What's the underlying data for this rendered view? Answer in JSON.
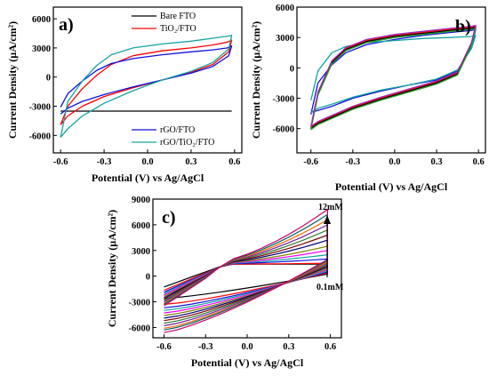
{
  "chart_data": [
    {
      "type": "line",
      "panel_label": "a)",
      "xlabel": "Potential (V) vs Ag/AgCl",
      "ylabel": "Current Density (µA/cm²)",
      "xlim": [
        -0.65,
        0.65
      ],
      "ylim": [
        -7800,
        7200
      ],
      "xticks": [
        "-0.6",
        "-0.3",
        "0.0",
        "0.3",
        "0.6"
      ],
      "yticks": [
        "6000",
        "3000",
        "0",
        "-3000",
        "-6000"
      ],
      "xtick_values": [
        -0.6,
        -0.3,
        0.0,
        0.3,
        0.6
      ],
      "ytick_values": [
        6000,
        3000,
        0,
        -3000,
        -6000
      ],
      "legend_top": [
        "Bare FTO",
        "TiO₂/FTO"
      ],
      "legend_bottom": [
        "rGO/FTO",
        "rGO/TiO₂/FTO"
      ],
      "series": [
        {
          "name": "Bare FTO",
          "color": "#000000",
          "x": [
            -0.6,
            0.58
          ],
          "y": [
            -3500,
            -3500
          ]
        },
        {
          "name": "TiO₂/FTO",
          "color": "#ff0000",
          "x": [
            -0.6,
            -0.55,
            -0.45,
            -0.35,
            -0.25,
            -0.1,
            0.1,
            0.3,
            0.45,
            0.55,
            0.58,
            0.56,
            0.45,
            0.3,
            0.1,
            -0.1,
            -0.3,
            -0.45,
            -0.55,
            -0.6
          ],
          "y": [
            -4900,
            -3000,
            -1200,
            200,
            1300,
            2200,
            2700,
            3000,
            3300,
            3600,
            3800,
            2600,
            1300,
            500,
            -300,
            -1100,
            -2000,
            -3000,
            -4000,
            -4900
          ]
        },
        {
          "name": "rGO/FTO",
          "color": "#1010e0",
          "x": [
            -0.6,
            -0.55,
            -0.45,
            -0.35,
            -0.25,
            -0.1,
            0.1,
            0.3,
            0.45,
            0.55,
            0.58,
            0.56,
            0.45,
            0.3,
            0.1,
            -0.1,
            -0.3,
            -0.45,
            -0.55,
            -0.6
          ],
          "y": [
            -3100,
            -1700,
            -400,
            700,
            1400,
            1900,
            2300,
            2600,
            2800,
            3000,
            3200,
            2200,
            1100,
            400,
            -300,
            -1000,
            -1800,
            -2500,
            -3200,
            -3800
          ]
        },
        {
          "name": "rGO/TiO₂/FTO",
          "color": "#14a5a0",
          "x": [
            -0.6,
            -0.55,
            -0.45,
            -0.35,
            -0.25,
            -0.1,
            0.1,
            0.3,
            0.45,
            0.55,
            0.58,
            0.56,
            0.45,
            0.3,
            0.1,
            -0.1,
            -0.3,
            -0.45,
            -0.55,
            -0.6
          ],
          "y": [
            -6200,
            -2500,
            -400,
            1200,
            2300,
            3000,
            3400,
            3700,
            4000,
            4200,
            4300,
            2900,
            1500,
            600,
            -300,
            -1400,
            -2700,
            -4000,
            -5300,
            -6200
          ]
        }
      ]
    },
    {
      "type": "line",
      "panel_label": "b)",
      "xlabel": "Potential (V) vs Ag/AgCl",
      "ylabel": "Current Density (µA/cm²)",
      "xlim": [
        -0.7,
        0.65
      ],
      "ylim": [
        -8400,
        6000
      ],
      "xticks": [
        "-0.6",
        "-0.3",
        "0.0",
        "0.3",
        "0.6"
      ],
      "yticks": [
        "6000",
        "3000",
        "0",
        "-3000",
        "-6000"
      ],
      "xtick_values": [
        -0.6,
        -0.3,
        0.0,
        0.3,
        0.6
      ],
      "ytick_values": [
        6000,
        3000,
        0,
        -3000,
        -6000
      ],
      "series": [
        {
          "color": "#1010e0",
          "x": [
            -0.6,
            -0.55,
            -0.45,
            -0.35,
            -0.2,
            0.0,
            0.2,
            0.4,
            0.55,
            0.58,
            0.55,
            0.45,
            0.3,
            0.1,
            -0.1,
            -0.3,
            -0.45,
            -0.55,
            -0.6
          ],
          "y": [
            -4600,
            -1500,
            300,
            1500,
            2300,
            2800,
            3200,
            3500,
            3700,
            3800,
            2000,
            -300,
            -1200,
            -1700,
            -2300,
            -3000,
            -3800,
            -4200,
            -4400
          ]
        },
        {
          "color": "#14a5a0",
          "x": [
            -0.6,
            -0.55,
            -0.45,
            -0.35,
            -0.2,
            0.0,
            0.2,
            0.4,
            0.55,
            0.58,
            0.55,
            0.45,
            0.3,
            0.1,
            -0.1,
            -0.3,
            -0.45,
            -0.55,
            -0.6
          ],
          "y": [
            -3200,
            -300,
            1500,
            2100,
            2500,
            2700,
            2900,
            3000,
            3100,
            3200,
            1900,
            -200,
            -1100,
            -1700,
            -2200,
            -2900,
            -3600,
            -4000,
            -4400
          ]
        },
        {
          "color": "#ff0000",
          "x": [
            -0.6,
            -0.55,
            -0.45,
            -0.35,
            -0.2,
            0.0,
            0.2,
            0.4,
            0.55,
            0.58,
            0.55,
            0.45,
            0.3,
            0.1,
            -0.1,
            -0.3,
            -0.45,
            -0.55,
            -0.6
          ],
          "y": [
            -5900,
            -2500,
            600,
            1900,
            2700,
            3200,
            3500,
            3800,
            4000,
            4100,
            2400,
            -500,
            -1400,
            -2200,
            -3000,
            -3900,
            -4800,
            -5400,
            -5900
          ]
        },
        {
          "color": "#000000",
          "x": [
            -0.6,
            -0.55,
            -0.45,
            -0.35,
            -0.2,
            0.0,
            0.2,
            0.4,
            0.55,
            0.58,
            0.55,
            0.45,
            0.3,
            0.1,
            -0.1,
            -0.3,
            -0.45,
            -0.55,
            -0.6
          ],
          "y": [
            -6000,
            -2600,
            500,
            1800,
            2600,
            3100,
            3400,
            3700,
            3900,
            4000,
            2300,
            -600,
            -1500,
            -2300,
            -3100,
            -4000,
            -4900,
            -5500,
            -6000
          ]
        },
        {
          "color": "#2ca02c",
          "x": [
            -0.6,
            -0.55,
            -0.45,
            -0.35,
            -0.2,
            0.0,
            0.2,
            0.4,
            0.55,
            0.58,
            0.55,
            0.45,
            0.3,
            0.1,
            -0.1,
            -0.3,
            -0.45,
            -0.55,
            -0.6
          ],
          "y": [
            -6100,
            -2700,
            400,
            1700,
            2500,
            3000,
            3300,
            3600,
            3800,
            3900,
            2200,
            -700,
            -1600,
            -2400,
            -3200,
            -4100,
            -5000,
            -5600,
            -6100
          ]
        },
        {
          "color": "#9c27b0",
          "x": [
            -0.6,
            -0.55,
            -0.45,
            -0.35,
            -0.2,
            0.0,
            0.2,
            0.4,
            0.55,
            0.58,
            0.55,
            0.45,
            0.3,
            0.1,
            -0.1,
            -0.3,
            -0.45,
            -0.55,
            -0.6
          ],
          "y": [
            -5800,
            -2400,
            700,
            2000,
            2800,
            3300,
            3600,
            3900,
            4100,
            4200,
            2500,
            -400,
            -1300,
            -2100,
            -2900,
            -3800,
            -4700,
            -5300,
            -5800
          ]
        }
      ]
    },
    {
      "type": "line",
      "panel_label": "c)",
      "xlabel": "Potential (V) vs Ag/AgCl",
      "ylabel": "Current Density (µA/cm²)",
      "xlim": [
        -0.68,
        0.68
      ],
      "ylim": [
        -7200,
        9000
      ],
      "xticks": [
        "-0.6",
        "-0.3",
        "0.0",
        "0.3",
        "0.6"
      ],
      "yticks": [
        "9000",
        "6000",
        "3000",
        "0",
        "-3000",
        "-6000"
      ],
      "xtick_values": [
        -0.6,
        -0.3,
        0.0,
        0.3,
        0.6
      ],
      "ytick_values": [
        9000,
        6000,
        3000,
        0,
        -3000,
        -6000
      ],
      "annotation_top": "12mM",
      "annotation_bottom": "0.1mM",
      "family_colors": [
        "#000000",
        "#ff0000",
        "#1010e0",
        "#14a5a0",
        "#ff00ff",
        "#808000",
        "#000080",
        "#800000",
        "#2e7d32",
        "#7b1fa2",
        "#ff6600",
        "#006666",
        "#cc0066"
      ],
      "family_anodic_max": [
        1000,
        1500,
        2000,
        2500,
        3000,
        3500,
        4200,
        4800,
        5400,
        6000,
        6600,
        7200,
        7800
      ],
      "family_cathodic_min": [
        -2300,
        -3000,
        -3400,
        -3700,
        -4000,
        -4300,
        -4600,
        -4900,
        -5200,
        -5500,
        -5800,
        -6000,
        -6300
      ]
    }
  ]
}
